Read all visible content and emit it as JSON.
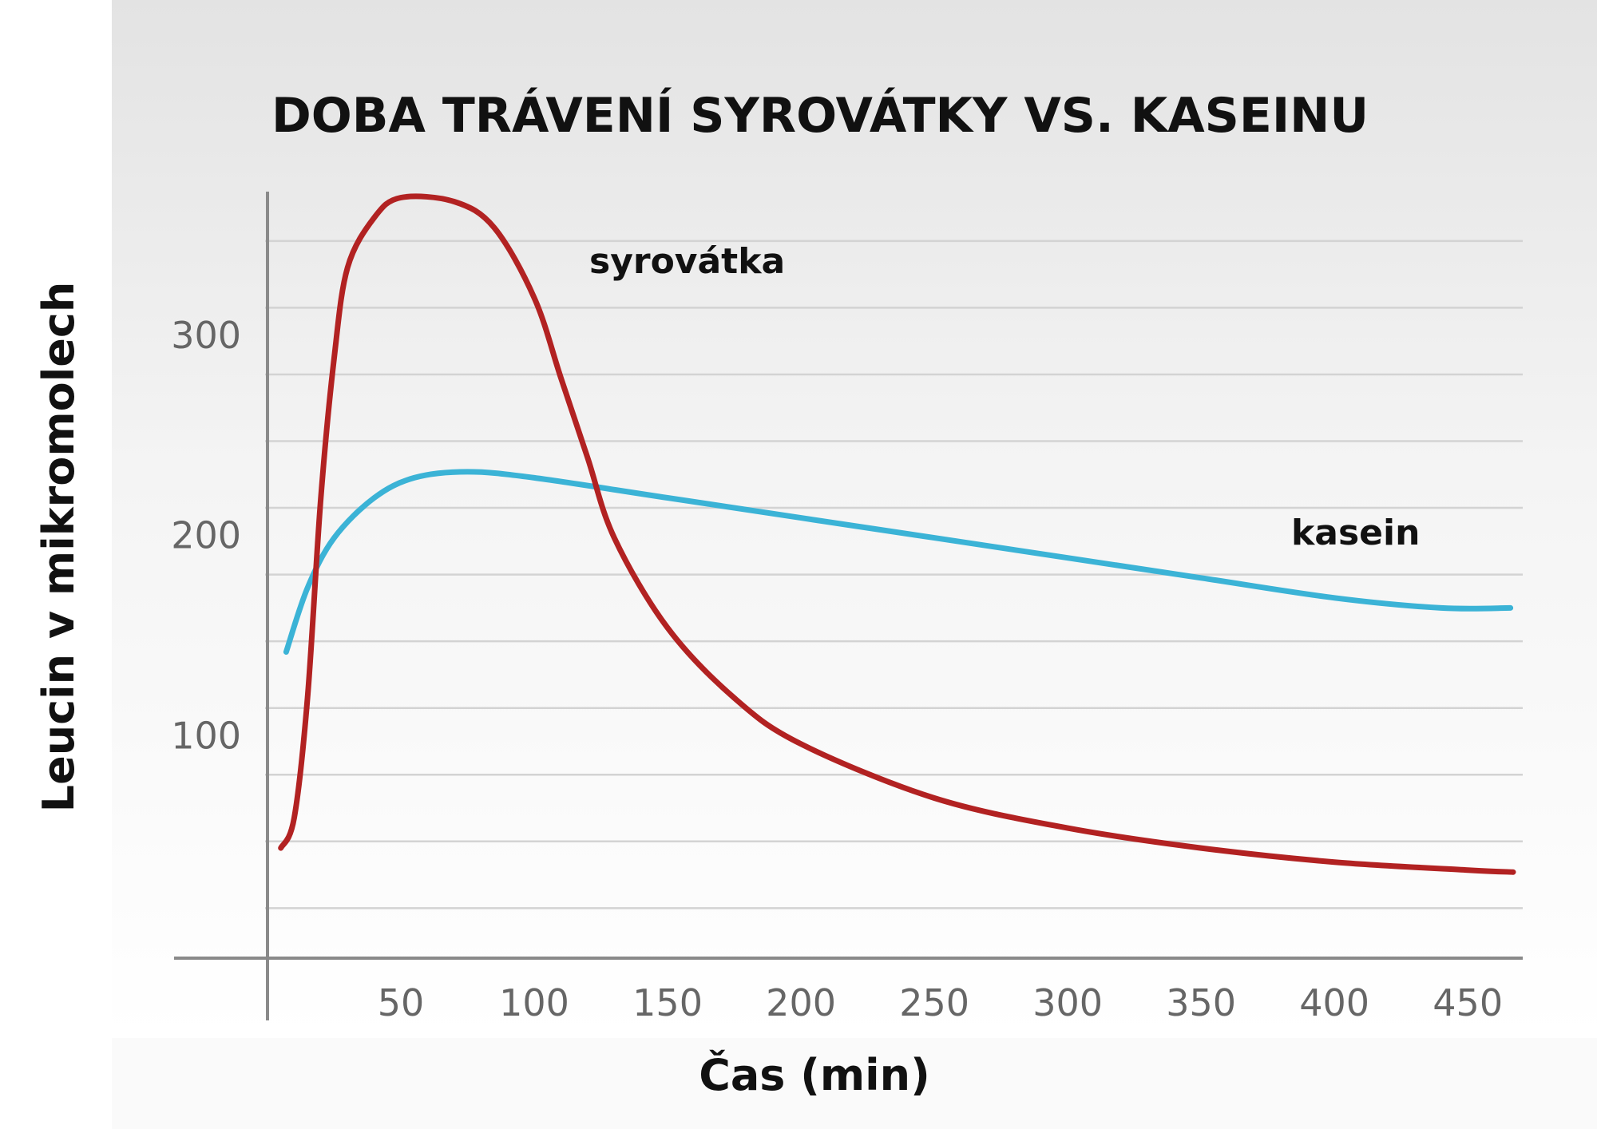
{
  "chart_data": {
    "type": "line",
    "title": "DOBA TRÁVENÍ SYROVÁTKY VS. KASEINU",
    "xlabel": "Čas (min)",
    "ylabel": "Leucin v mikromolech",
    "xlim": [
      0,
      470
    ],
    "ylim": [
      0,
      385
    ],
    "x_ticks": [
      50,
      100,
      150,
      200,
      250,
      300,
      350,
      400,
      450
    ],
    "y_ticks": [
      100,
      200,
      300
    ],
    "grid": true,
    "legend": "inline labels",
    "series": [
      {
        "name": "syrovátka",
        "color": "#b22222",
        "points": [
          [
            5,
            55
          ],
          [
            10,
            70
          ],
          [
            15,
            130
          ],
          [
            20,
            230
          ],
          [
            25,
            300
          ],
          [
            30,
            345
          ],
          [
            40,
            370
          ],
          [
            50,
            380
          ],
          [
            70,
            378
          ],
          [
            85,
            365
          ],
          [
            100,
            330
          ],
          [
            110,
            290
          ],
          [
            120,
            250
          ],
          [
            130,
            210
          ],
          [
            150,
            165
          ],
          [
            175,
            130
          ],
          [
            200,
            107
          ],
          [
            250,
            80
          ],
          [
            300,
            65
          ],
          [
            350,
            55
          ],
          [
            400,
            48
          ],
          [
            450,
            44
          ],
          [
            467,
            43
          ]
        ]
      },
      {
        "name": "kasein",
        "color": "#3bb3d6",
        "points": [
          [
            7,
            153
          ],
          [
            15,
            185
          ],
          [
            25,
            210
          ],
          [
            40,
            230
          ],
          [
            55,
            240
          ],
          [
            75,
            243
          ],
          [
            100,
            240
          ],
          [
            150,
            230
          ],
          [
            200,
            220
          ],
          [
            250,
            210
          ],
          [
            300,
            200
          ],
          [
            350,
            190
          ],
          [
            400,
            180
          ],
          [
            440,
            175
          ],
          [
            466,
            175
          ]
        ]
      }
    ]
  }
}
